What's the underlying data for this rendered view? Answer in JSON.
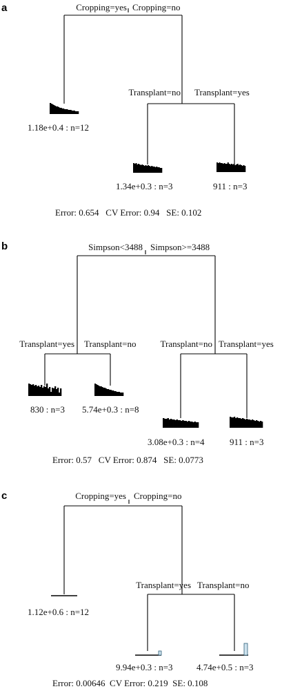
{
  "panels": [
    {
      "label": "a",
      "root_split": {
        "left": "Cropping=yes",
        "right": "Cropping=no"
      },
      "right_split": {
        "left": "Transplant=no",
        "right": "Transplant=yes"
      },
      "leaves": [
        {
          "text": "1.18e+0.4 : n=12"
        },
        {
          "text": "1.34e+0.3 : n=3"
        },
        {
          "text": "911 : n=3"
        }
      ],
      "footer": "Error: 0.654   CV Error: 0.94   SE: 0.102"
    },
    {
      "label": "b",
      "root_split": {
        "left": "Simpson<3488",
        "right": "Simpson>=3488"
      },
      "left_split": {
        "left": "Transplant=yes",
        "right": "Transplant=no"
      },
      "right_split": {
        "left": "Transplant=no",
        "right": "Transplant=yes"
      },
      "leaves": [
        {
          "text": "830 : n=3"
        },
        {
          "text": "5.74e+0.3 : n=8"
        },
        {
          "text": "3.08e+0.3 : n=4"
        },
        {
          "text": "911 : n=3"
        }
      ],
      "footer": "Error: 0.57   CV Error: 0.874   SE: 0.0773"
    },
    {
      "label": "c",
      "root_split": {
        "left": "Cropping=yes",
        "right": "Cropping=no"
      },
      "right_split": {
        "left": "Transplant=yes",
        "right": "Transplant=no"
      },
      "leaves": [
        {
          "text": "1.12e+0.6 : n=12"
        },
        {
          "text": "9.94e+0.3 : n=3"
        },
        {
          "text": "4.74e+0.5 : n=3"
        }
      ],
      "footer": "Error: 0.00646  CV Error: 0.219  SE: 0.108"
    }
  ]
}
